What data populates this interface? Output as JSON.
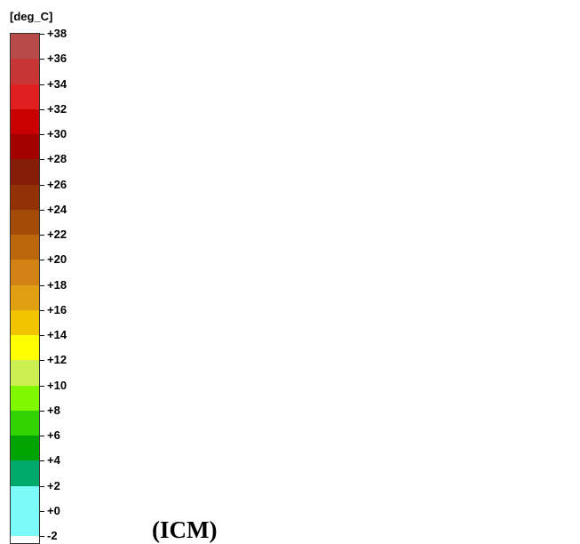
{
  "colorbar": {
    "unit_label": "[deg_C]",
    "bands": [
      {
        "label": "+38",
        "color": "#9a5c5c"
      },
      {
        "label": "+36",
        "color": "#b84a4a"
      },
      {
        "label": "+34",
        "color": "#c83535"
      },
      {
        "label": "+32",
        "color": "#e01f1f"
      },
      {
        "label": "+30",
        "color": "#c80000"
      },
      {
        "label": "+28",
        "color": "#a30000"
      },
      {
        "label": "+26",
        "color": "#861c0a"
      },
      {
        "label": "+24",
        "color": "#923106"
      },
      {
        "label": "+22",
        "color": "#a34a08"
      },
      {
        "label": "+20",
        "color": "#ba660a"
      },
      {
        "label": "+18",
        "color": "#d08212"
      },
      {
        "label": "+16",
        "color": "#e0a012"
      },
      {
        "label": "+14",
        "color": "#f2c400"
      },
      {
        "label": "+12",
        "color": "#ffff00"
      },
      {
        "label": "+10",
        "color": "#ccf052"
      },
      {
        "label": "+8",
        "color": "#7ff800"
      },
      {
        "label": "+6",
        "color": "#32d200"
      },
      {
        "label": "+4",
        "color": "#00a400"
      },
      {
        "label": "+2",
        "color": "#00a86a"
      },
      {
        "label": "+0",
        "color": "#7afaf8"
      },
      {
        "label": "-2",
        "color": "#7afaf8"
      }
    ]
  },
  "footer": {
    "title": "(ICM)"
  }
}
